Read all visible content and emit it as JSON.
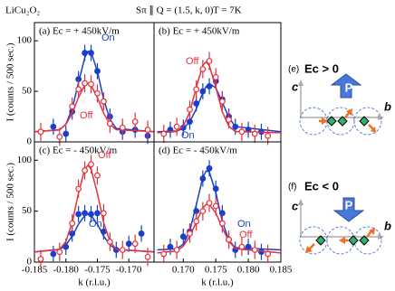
{
  "header": {
    "material": "LiCu₂O₂",
    "geometry": "Sπ ∥ Q = (1.5, k, 0)",
    "temperature": "T = 7K"
  },
  "diagrams": [
    {
      "label": "(e)",
      "title": "Ec > 0",
      "axes": [
        "c",
        "b"
      ],
      "arrow": "P"
    },
    {
      "label": "(f)",
      "title": "Ec < 0",
      "axes": [
        "c",
        "b"
      ],
      "arrow": "P"
    }
  ],
  "chart_data": [
    {
      "type": "scatter",
      "title": "(a) Ec = + 450kV/m",
      "ylabel": "I (counts / 500 sec.)",
      "xlim": [
        -0.185,
        -0.166
      ],
      "ylim": [
        0,
        118
      ],
      "yticks": [
        0,
        50,
        100
      ],
      "series": [
        {
          "name": "On",
          "color": "#1a3fcc",
          "marker": "filled",
          "x": [
            -0.182,
            -0.18,
            -0.179,
            -0.178,
            -0.177,
            -0.176,
            -0.175,
            -0.174,
            -0.173,
            -0.171,
            -0.169,
            -0.167
          ],
          "values": [
            15,
            8,
            30,
            62,
            88,
            88,
            70,
            40,
            25,
            10,
            12,
            6
          ],
          "errors": [
            8,
            8,
            8,
            8,
            8,
            8,
            8,
            8,
            8,
            8,
            8,
            8
          ],
          "fit": {
            "x": [
              -0.185,
              -0.181,
              -0.18,
              -0.179,
              -0.178,
              -0.177,
              -0.1765,
              -0.176,
              -0.175,
              -0.174,
              -0.173,
              -0.172,
              -0.166
            ],
            "values": [
              10,
              11.8,
              17.5,
              32.7,
              58.5,
              83.5,
              89.5,
              88.8,
              69.8,
              42,
              22.2,
              13.3,
              10
            ]
          }
        },
        {
          "name": "Off",
          "color": "#e8303a",
          "marker": "open",
          "x": [
            -0.184,
            -0.181,
            -0.179,
            -0.178,
            -0.177,
            -0.176,
            -0.175,
            -0.174,
            -0.173,
            -0.171,
            -0.169,
            -0.167
          ],
          "values": [
            10,
            5,
            35,
            52,
            58,
            57,
            48,
            40,
            18,
            14,
            20,
            12
          ],
          "errors": [
            9,
            9,
            9,
            9,
            9,
            9,
            9,
            9,
            9,
            9,
            9,
            9
          ],
          "fit": {
            "x": [
              -0.185,
              -0.181,
              -0.18,
              -0.179,
              -0.178,
              -0.177,
              -0.1765,
              -0.176,
              -0.175,
              -0.174,
              -0.173,
              -0.172,
              -0.166
            ],
            "values": [
              10,
              12.1,
              17.3,
              28.3,
              43.9,
              56.2,
              58,
              56.2,
              43.9,
              28.3,
              17.3,
              12.1,
              10
            ]
          }
        }
      ]
    },
    {
      "type": "scatter",
      "title": "(b) Ec = + 450kV/m",
      "xlim": [
        0.1655,
        0.185
      ],
      "ylim": [
        0,
        118
      ],
      "series": [
        {
          "name": "On",
          "color": "#1a3fcc",
          "marker": "filled",
          "x": [
            0.168,
            0.17,
            0.171,
            0.172,
            0.173,
            0.174,
            0.175,
            0.176,
            0.177,
            0.178,
            0.18,
            0.182
          ],
          "values": [
            12,
            14,
            20,
            38,
            50,
            55,
            60,
            42,
            25,
            15,
            12,
            10
          ],
          "errors": [
            8,
            8,
            8,
            8,
            8,
            8,
            8,
            8,
            8,
            8,
            8,
            8
          ],
          "fit": {
            "x": [
              0.166,
              0.169,
              0.17,
              0.171,
              0.172,
              0.173,
              0.1735,
              0.174,
              0.175,
              0.176,
              0.177,
              0.178,
              0.185
            ],
            "values": [
              10,
              10.7,
              13.2,
              19.9,
              32.7,
              48.4,
              54.5,
              57.7,
              53.5,
              39.1,
              24.3,
              15.1,
              10
            ]
          }
        },
        {
          "name": "Off",
          "color": "#e8303a",
          "marker": "open",
          "x": [
            0.167,
            0.169,
            0.171,
            0.172,
            0.173,
            0.174,
            0.175,
            0.176,
            0.177,
            0.179,
            0.181,
            0.183
          ],
          "values": [
            8,
            15,
            32,
            52,
            72,
            80,
            64,
            40,
            22,
            10,
            8,
            6
          ],
          "errors": [
            9,
            9,
            9,
            9,
            9,
            9,
            9,
            9,
            9,
            9,
            9,
            9
          ],
          "fit": {
            "x": [
              0.166,
              0.169,
              0.17,
              0.171,
              0.172,
              0.173,
              0.1735,
              0.174,
              0.175,
              0.176,
              0.177,
              0.178,
              0.185
            ],
            "values": [
              9,
              10.3,
              15.4,
              29.7,
              54.1,
              75.6,
              79,
              75.6,
              54.1,
              29.7,
              15.4,
              10.3,
              9
            ]
          }
        }
      ]
    },
    {
      "type": "scatter",
      "title": "(c) Ec = - 450kV/m",
      "ylabel": "I (counts / 500 sec.)",
      "xlabel": "k (r.l.u.)",
      "xlim": [
        -0.185,
        -0.166
      ],
      "ylim": [
        0,
        118
      ],
      "yticks": [
        0,
        50,
        100
      ],
      "xticks": [
        {
          "value": -0.185,
          "label": "-0.185"
        },
        {
          "value": -0.18,
          "label": "-0.180"
        },
        {
          "value": -0.175,
          "label": "-0.175"
        },
        {
          "value": -0.17,
          "label": "-0.170"
        }
      ],
      "series": [
        {
          "name": "On",
          "color": "#1a3fcc",
          "marker": "filled",
          "x": [
            -0.182,
            -0.18,
            -0.179,
            -0.178,
            -0.177,
            -0.176,
            -0.175,
            -0.174,
            -0.172,
            -0.17,
            -0.168
          ],
          "values": [
            8,
            15,
            28,
            47,
            48,
            47,
            48,
            30,
            12,
            18,
            28
          ],
          "errors": [
            8,
            8,
            8,
            8,
            8,
            8,
            8,
            8,
            8,
            8,
            8
          ],
          "fit": {
            "x": [
              -0.185,
              -0.181,
              -0.18,
              -0.179,
              -0.178,
              -0.177,
              -0.1765,
              -0.176,
              -0.175,
              -0.174,
              -0.173,
              -0.172,
              -0.166
            ],
            "values": [
              10,
              12.3,
              16.8,
              25.5,
              37.1,
              45.8,
              47,
              45.8,
              37.1,
              25.5,
              16.8,
              12.3,
              10
            ]
          }
        },
        {
          "name": "Off",
          "color": "#e8303a",
          "marker": "open",
          "x": [
            -0.184,
            -0.181,
            -0.179,
            -0.178,
            -0.177,
            -0.176,
            -0.175,
            -0.174,
            -0.173,
            -0.171,
            -0.169,
            -0.167
          ],
          "values": [
            3,
            10,
            38,
            72,
            90,
            96,
            85,
            48,
            20,
            12,
            18,
            5
          ],
          "errors": [
            9,
            9,
            9,
            9,
            9,
            9,
            9,
            9,
            9,
            9,
            9,
            9
          ],
          "fit": {
            "x": [
              -0.185,
              -0.181,
              -0.18,
              -0.179,
              -0.178,
              -0.177,
              -0.1765,
              -0.176,
              -0.175,
              -0.174,
              -0.173,
              -0.172,
              -0.166
            ],
            "values": [
              10,
              12.6,
              20.2,
              38.9,
              67.5,
              91.4,
              95,
              91.4,
              67.5,
              38.9,
              20.2,
              12.6,
              10
            ]
          }
        }
      ]
    },
    {
      "type": "scatter",
      "title": "(d) Ec = - 450kV/m",
      "xlabel": "k (r.l.u.)",
      "xlim": [
        0.1655,
        0.185
      ],
      "ylim": [
        0,
        118
      ],
      "xticks": [
        {
          "value": 0.17,
          "label": "0.170"
        },
        {
          "value": 0.175,
          "label": "0.175"
        },
        {
          "value": 0.18,
          "label": "0.180"
        },
        {
          "value": 0.185,
          "label": "0.185"
        }
      ],
      "series": [
        {
          "name": "On",
          "color": "#1a3fcc",
          "marker": "filled",
          "x": [
            0.168,
            0.17,
            0.171,
            0.172,
            0.173,
            0.174,
            0.175,
            0.176,
            0.177,
            0.178,
            0.18,
            0.182
          ],
          "values": [
            15,
            25,
            30,
            50,
            82,
            92,
            72,
            48,
            22,
            12,
            15,
            10
          ],
          "errors": [
            8,
            8,
            8,
            8,
            8,
            8,
            8,
            8,
            8,
            8,
            8,
            8
          ],
          "fit": {
            "x": [
              0.166,
              0.169,
              0.17,
              0.171,
              0.172,
              0.173,
              0.1735,
              0.174,
              0.175,
              0.176,
              0.177,
              0.178,
              0.185
            ],
            "values": [
              12,
              13,
              17.4,
              30.7,
              56.5,
              82.8,
              89.4,
              88.6,
              68.2,
              39.8,
              21.4,
              14.1,
              12
            ]
          }
        },
        {
          "name": "Off",
          "color": "#e8303a",
          "marker": "open",
          "x": [
            0.167,
            0.169,
            0.171,
            0.172,
            0.173,
            0.174,
            0.175,
            0.176,
            0.177,
            0.179,
            0.181,
            0.183
          ],
          "values": [
            8,
            12,
            28,
            40,
            50,
            58,
            55,
            38,
            22,
            15,
            12,
            8
          ],
          "errors": [
            9,
            9,
            9,
            9,
            9,
            9,
            9,
            9,
            9,
            9,
            9,
            9
          ],
          "fit": {
            "x": [
              0.166,
              0.169,
              0.17,
              0.171,
              0.172,
              0.173,
              0.1735,
              0.174,
              0.175,
              0.176,
              0.177,
              0.178,
              0.185
            ],
            "values": [
              9,
              11,
              15.5,
              25.2,
              39.6,
              52.9,
              56.4,
              56.7,
              48.3,
              33.5,
              20.7,
              13.2,
              9
            ]
          }
        }
      ]
    }
  ]
}
